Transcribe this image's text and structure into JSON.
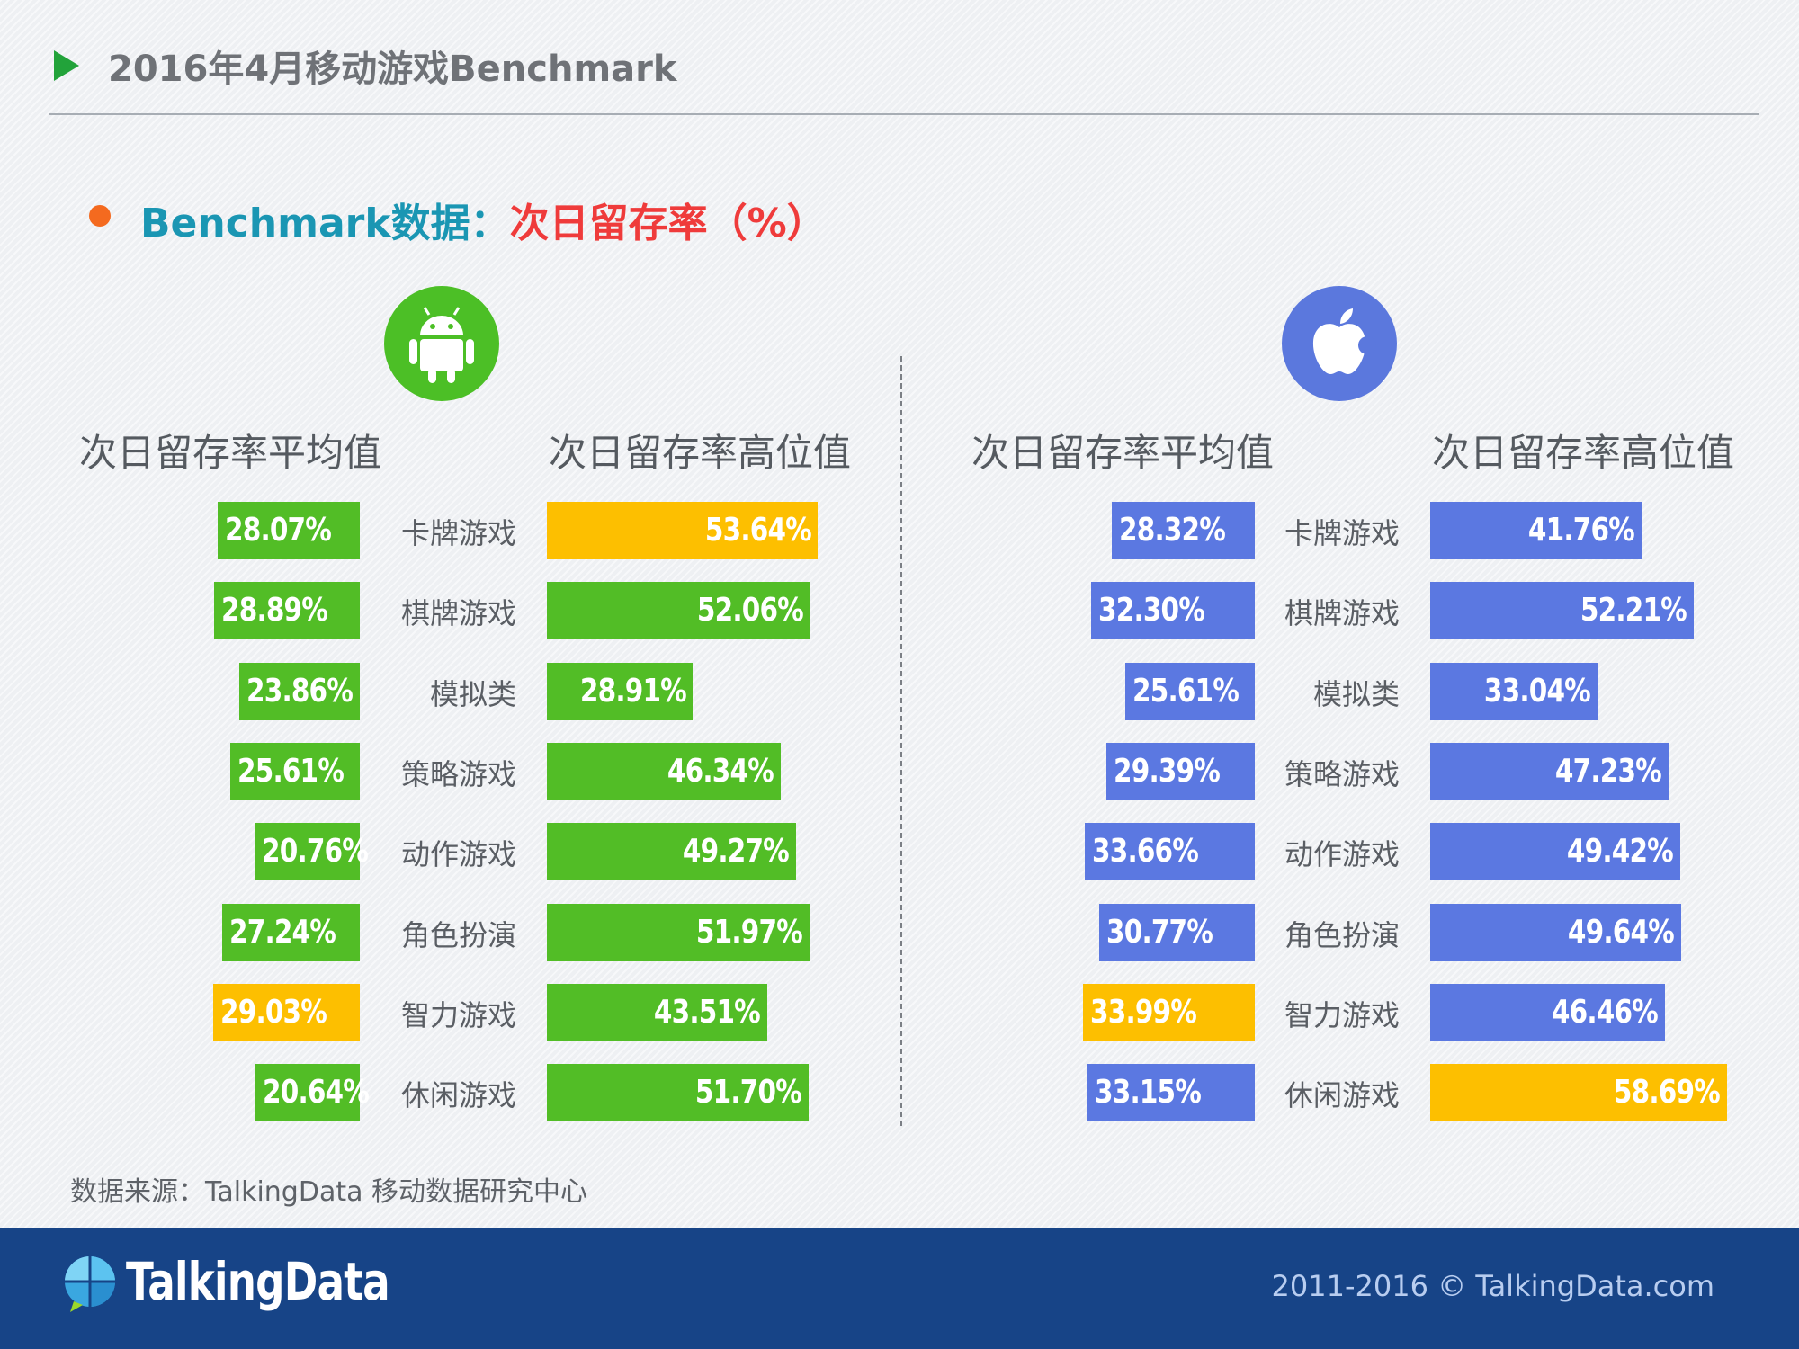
{
  "header": {
    "title": "2016年4月移动游戏Benchmark"
  },
  "subtitle": {
    "part1": "Benchmark数据：",
    "part2": "次日留存率（%）"
  },
  "columns": {
    "avg_header": "次日留存率平均值",
    "high_header": "次日留存率高位值"
  },
  "platforms": {
    "android": {
      "icon": "android-icon"
    },
    "ios": {
      "icon": "apple-icon"
    }
  },
  "colors": {
    "android_bar": "#52bd26",
    "ios_bar": "#5b78e1",
    "highlight_bar": "#fdbf00"
  },
  "chart_data": [
    {
      "type": "bar",
      "title": "次日留存率平均值",
      "icon": "android-icon",
      "categories": [
        "卡牌游戏",
        "棋牌游戏",
        "模拟类",
        "策略游戏",
        "动作游戏",
        "角色扮演",
        "智力游戏",
        "休闲游戏"
      ],
      "values": [
        28.07,
        28.89,
        23.86,
        25.61,
        20.76,
        27.24,
        29.03,
        20.64
      ],
      "labels": [
        "28.07%",
        "28.89%",
        "23.86%",
        "25.61%",
        "20.76%",
        "27.24%",
        "29.03%",
        "20.64%"
      ],
      "highlight_index": 6
    },
    {
      "type": "bar",
      "title": "次日留存率高位值",
      "icon": "android-icon",
      "categories": [
        "卡牌游戏",
        "棋牌游戏",
        "模拟类",
        "策略游戏",
        "动作游戏",
        "角色扮演",
        "智力游戏",
        "休闲游戏"
      ],
      "values": [
        53.64,
        52.06,
        28.91,
        46.34,
        49.27,
        51.97,
        43.51,
        51.7
      ],
      "labels": [
        "53.64%",
        "52.06%",
        "28.91%",
        "46.34%",
        "49.27%",
        "51.97%",
        "43.51%",
        "51.70%"
      ],
      "highlight_index": 0
    },
    {
      "type": "bar",
      "title": "次日留存率平均值",
      "icon": "apple-icon",
      "categories": [
        "卡牌游戏",
        "棋牌游戏",
        "模拟类",
        "策略游戏",
        "动作游戏",
        "角色扮演",
        "智力游戏",
        "休闲游戏"
      ],
      "values": [
        28.32,
        32.3,
        25.61,
        29.39,
        33.66,
        30.77,
        33.99,
        33.15
      ],
      "labels": [
        "28.32%",
        "32.30%",
        "25.61%",
        "29.39%",
        "33.66%",
        "30.77%",
        "33.99%",
        "33.15%"
      ],
      "highlight_index": 6
    },
    {
      "type": "bar",
      "title": "次日留存率高位值",
      "icon": "apple-icon",
      "categories": [
        "卡牌游戏",
        "棋牌游戏",
        "模拟类",
        "策略游戏",
        "动作游戏",
        "角色扮演",
        "智力游戏",
        "休闲游戏"
      ],
      "values": [
        41.76,
        52.21,
        33.04,
        47.23,
        49.42,
        49.64,
        46.46,
        58.69
      ],
      "labels": [
        "41.76%",
        "52.21%",
        "33.04%",
        "47.23%",
        "49.42%",
        "49.64%",
        "46.46%",
        "58.69%"
      ],
      "highlight_index": 7
    }
  ],
  "source": "数据来源：TalkingData 移动数据研究中心",
  "footer": {
    "logo_text": "TalkingData",
    "copyright": "2011-2016 © TalkingData.com"
  }
}
